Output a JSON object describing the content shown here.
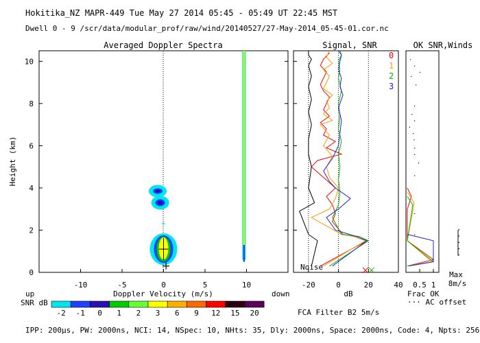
{
  "header": {
    "line1": "Hokitika_NZ  MAPR-449  Tue May 27 2014 05:45 - 05:49 UT 22:45 MST",
    "line2": "Dwell  0 - 9   /scr/data/modular_prof/raw/wind/20140527/27-May-2014_05-45-01.cor.nc"
  },
  "footer": {
    "params": "IPP: 200µs,  PW: 2000ns,  NCI: 14,  NSpec: 10, NHts: 35,  Dly: 2000ns,  Space: 2000ns,  Code: 4,  Npts: 256",
    "fca": "FCA Filter B2  5m/s"
  },
  "colorbar": {
    "label_top": "up",
    "label_snr": "SNR dB",
    "label_down": "down",
    "ticks": [
      "-2",
      "-1",
      "0",
      "1",
      "2",
      "3",
      "6",
      "9",
      "12",
      "15",
      "20"
    ],
    "colors": [
      "#00e5ee",
      "#1e40ff",
      "#2a10b0",
      "#00cc00",
      "#66ff33",
      "#ffff00",
      "#ffb000",
      "#ff6a00",
      "#ff0000",
      "#2a0010",
      "#5a005a"
    ]
  },
  "chart_data": [
    {
      "type": "heatmap",
      "title": "Averaged Doppler Spectra",
      "xlabel": "Doppler Velocity (m/s)",
      "ylabel": "Height (km)",
      "xlim": [
        -15,
        15
      ],
      "ylim": [
        0,
        10.5
      ],
      "xticks": [
        "-10",
        "-5",
        "0",
        "5",
        "10"
      ],
      "yticks": [
        "0",
        "2",
        "4",
        "6",
        "8",
        "10"
      ],
      "ground_clutter_line_velocity": 9.7,
      "blobs": [
        {
          "velocity": -0.7,
          "height": 3.85,
          "peak_snr_db": 0
        },
        {
          "velocity": -0.4,
          "height": 3.3,
          "peak_snr_db": 0
        },
        {
          "velocity": 0.0,
          "height": 1.1,
          "peak_snr_db": 6
        }
      ],
      "cross_marker": {
        "velocity": 0.3,
        "height": 0.3
      }
    },
    {
      "type": "line",
      "title": "Signal, SNR",
      "xlabel": "dB",
      "xlim": [
        -30,
        40
      ],
      "ylim": [
        0,
        10.5
      ],
      "xticks": [
        "-20",
        "0",
        "20",
        "40"
      ],
      "noise_label": "Noise",
      "series": [
        {
          "name": "0",
          "color": "#ff0000",
          "x": [
            -12,
            19,
            12,
            3,
            -4,
            -2,
            -4,
            -8,
            -2,
            -18,
            -14,
            2,
            -8,
            -2,
            -10,
            -8,
            -12,
            -6,
            -10,
            -8,
            -6,
            -10,
            -12,
            -10,
            -8,
            -12,
            -10,
            -6
          ],
          "y": [
            0.3,
            1.5,
            1.7,
            1.8,
            2.4,
            2.8,
            3.2,
            3.6,
            4.0,
            5.0,
            5.3,
            5.6,
            5.9,
            6.2,
            6.5,
            6.8,
            7.1,
            7.4,
            7.7,
            8.0,
            8.3,
            8.6,
            8.9,
            9.2,
            9.5,
            9.8,
            10.1,
            10.4
          ]
        },
        {
          "name": "1",
          "color": "#ff9900",
          "x": [
            -10,
            18,
            10,
            2,
            -18,
            -6,
            -2,
            0,
            -6,
            -8,
            -4,
            -10,
            -6,
            -12,
            -4,
            -10,
            -6,
            -8,
            -4,
            -10,
            -8,
            -6,
            -10,
            -4,
            -8,
            -6
          ],
          "y": [
            0.3,
            1.5,
            1.7,
            1.8,
            2.6,
            3.0,
            3.5,
            4.0,
            4.5,
            5.0,
            5.5,
            6.0,
            6.5,
            7.0,
            7.2,
            7.5,
            7.8,
            8.1,
            8.4,
            8.7,
            9.0,
            9.3,
            9.6,
            9.9,
            10.2,
            10.5
          ]
        },
        {
          "name": "2",
          "color": "#00bb00",
          "x": [
            -6,
            20,
            14,
            2,
            -4,
            0,
            1,
            0,
            1,
            0,
            2,
            0,
            1,
            0,
            2,
            0,
            1,
            0,
            2,
            1
          ],
          "y": [
            0.3,
            1.5,
            1.7,
            1.8,
            2.6,
            3.2,
            3.8,
            4.4,
            5.0,
            5.6,
            6.2,
            6.8,
            7.4,
            8.0,
            8.6,
            9.2,
            9.6,
            10.0,
            10.3,
            10.5
          ]
        },
        {
          "name": "3",
          "color": "#2222cc",
          "x": [
            -4,
            19,
            12,
            -2,
            -8,
            0,
            8,
            -2,
            -6,
            -10,
            -4,
            0,
            1,
            2,
            0,
            3,
            1,
            2,
            0,
            1,
            2,
            0
          ],
          "y": [
            0.3,
            1.5,
            1.7,
            2.0,
            2.6,
            3.0,
            3.5,
            4.0,
            4.3,
            4.8,
            5.4,
            6.0,
            6.6,
            7.2,
            7.8,
            8.4,
            8.8,
            9.2,
            9.6,
            10.0,
            10.3,
            10.5
          ]
        },
        {
          "name": "noise",
          "color": "#000000",
          "x": [
            -18,
            -14,
            -20,
            -26,
            -16,
            -20,
            -18,
            -20,
            -20,
            -18,
            -20,
            -18,
            -20,
            -18,
            -20,
            -18,
            -20,
            -20
          ],
          "y": [
            0.3,
            1.5,
            1.8,
            2.9,
            3.3,
            4.0,
            5.0,
            5.6,
            6.3,
            7.0,
            7.6,
            8.2,
            8.8,
            9.3,
            9.8,
            10.1,
            10.3,
            10.5
          ]
        }
      ]
    },
    {
      "type": "line",
      "title": "OK SNR,Winds",
      "xlabel": "Frac OK",
      "note": "··· AC offset",
      "xlim": [
        0,
        1.2
      ],
      "ylim": [
        0,
        10.5
      ],
      "xticks": [
        "0.5",
        "1"
      ],
      "series": [
        {
          "name": "0",
          "color": "#ff0000",
          "x": [
            0.05,
            1.0,
            0.05,
            0.05,
            0.2,
            0.05
          ],
          "y": [
            0.3,
            0.6,
            1.5,
            3.0,
            3.6,
            4.0
          ]
        },
        {
          "name": "1",
          "color": "#ff9900",
          "x": [
            0.05,
            0.95,
            0.05,
            0.3,
            0.05
          ],
          "y": [
            0.3,
            0.5,
            1.5,
            3.3,
            3.8
          ]
        },
        {
          "name": "2",
          "color": "#00bb00",
          "x": [
            0.05,
            1.0,
            0.05,
            0.25,
            0.05
          ],
          "y": [
            0.3,
            0.5,
            1.5,
            3.2,
            3.6
          ]
        },
        {
          "name": "3",
          "color": "#2222cc",
          "x": [
            0.1,
            1.0,
            1.0,
            0.05
          ],
          "y": [
            0.3,
            0.5,
            1.5,
            1.8
          ]
        }
      ],
      "ac_offset_dots": {
        "x": [
          0.15,
          0.3,
          0.5,
          0.18,
          0.35,
          0.3,
          0.2,
          0.3,
          0.12,
          0.25,
          0.28,
          0.3,
          0.3,
          0.45,
          0.3,
          0.3,
          0.3
        ],
        "y": [
          10.1,
          9.8,
          9.5,
          9.3,
          8.9,
          7.9,
          7.5,
          7.2,
          6.9,
          6.6,
          6.3,
          5.9,
          5.6,
          5.2,
          4.6,
          2.8,
          1.8
        ]
      }
    },
    {
      "type": "line",
      "title": "Winds",
      "xlabel": "Max",
      "xlabel2": "8m/s",
      "segments": [
        {
          "x": 0.0,
          "y0": 0.8,
          "y1": 2.0
        }
      ]
    }
  ],
  "legend": {
    "title": "Signal, SNR",
    "items": [
      "0",
      "1",
      "2",
      "3"
    ]
  }
}
